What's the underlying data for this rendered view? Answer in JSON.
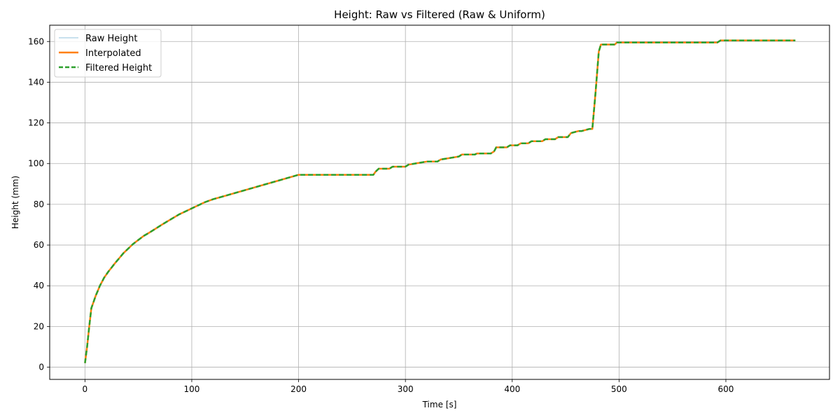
{
  "chart_data": {
    "type": "line",
    "title": "Height: Raw vs Filtered (Raw & Uniform)",
    "xlabel": "Time [s]",
    "ylabel": "Height (mm)",
    "xlim": [
      -33,
      697
    ],
    "ylim": [
      -6,
      168
    ],
    "xticks": [
      0,
      100,
      200,
      300,
      400,
      500,
      600
    ],
    "yticks": [
      0,
      20,
      40,
      60,
      80,
      100,
      120,
      140,
      160
    ],
    "grid": true,
    "legend_position": "top-left",
    "series": [
      {
        "name": "Raw Height",
        "color": "#a6cee3",
        "style": "solid-thin",
        "x": [
          0,
          2,
          4,
          6,
          8,
          10,
          12,
          14,
          16,
          18,
          20,
          22,
          25,
          28,
          32,
          36,
          40,
          45,
          50,
          55,
          60,
          66,
          72,
          80,
          88,
          96,
          104,
          112,
          120,
          130,
          140,
          150,
          160,
          170,
          180,
          190,
          200,
          210,
          220,
          230,
          240,
          250,
          262,
          270,
          272,
          275,
          285,
          288,
          300,
          303,
          320,
          330,
          333,
          350,
          353,
          365,
          367,
          380,
          383,
          385,
          395,
          398,
          405,
          408,
          415,
          418,
          428,
          431,
          440,
          443,
          452,
          455,
          462,
          465,
          472,
          475,
          478,
          481,
          483,
          496,
          498,
          592,
          595,
          665
        ],
        "y": [
          2,
          10,
          20,
          29,
          32,
          35,
          37.5,
          40,
          42,
          44,
          45.5,
          47,
          49,
          51,
          53.5,
          56,
          58,
          60.5,
          62.5,
          64.5,
          66,
          68,
          70,
          72.5,
          75,
          77,
          79,
          81,
          82.5,
          84,
          85.5,
          87,
          88.5,
          90,
          91.5,
          93,
          94.5,
          94.5,
          94.5,
          94.5,
          94.5,
          94.5,
          94.5,
          94.5,
          96,
          97.5,
          97.5,
          98.5,
          98.5,
          99.5,
          101,
          101,
          102,
          103.5,
          104.5,
          104.5,
          105,
          105,
          106,
          108,
          108,
          109,
          109,
          110,
          110,
          111,
          111,
          112,
          112,
          113,
          113,
          115,
          116,
          116,
          117,
          117,
          135,
          155,
          158.5,
          158.5,
          159.5,
          159.5,
          160.5,
          160.5
        ]
      },
      {
        "name": "Interpolated",
        "color": "#ff7f0e",
        "style": "solid-thick",
        "x": [
          0,
          2,
          4,
          6,
          8,
          10,
          12,
          14,
          16,
          18,
          20,
          22,
          25,
          28,
          32,
          36,
          40,
          45,
          50,
          55,
          60,
          66,
          72,
          80,
          88,
          96,
          104,
          112,
          120,
          130,
          140,
          150,
          160,
          170,
          180,
          190,
          200,
          210,
          220,
          230,
          240,
          250,
          262,
          270,
          272,
          275,
          285,
          288,
          300,
          303,
          320,
          330,
          333,
          350,
          353,
          365,
          367,
          380,
          383,
          385,
          395,
          398,
          405,
          408,
          415,
          418,
          428,
          431,
          440,
          443,
          452,
          455,
          462,
          465,
          472,
          475,
          478,
          481,
          483,
          496,
          498,
          592,
          595,
          665
        ],
        "y": [
          2,
          10,
          20,
          29,
          32,
          35,
          37.5,
          40,
          42,
          44,
          45.5,
          47,
          49,
          51,
          53.5,
          56,
          58,
          60.5,
          62.5,
          64.5,
          66,
          68,
          70,
          72.5,
          75,
          77,
          79,
          81,
          82.5,
          84,
          85.5,
          87,
          88.5,
          90,
          91.5,
          93,
          94.5,
          94.5,
          94.5,
          94.5,
          94.5,
          94.5,
          94.5,
          94.5,
          96,
          97.5,
          97.5,
          98.5,
          98.5,
          99.5,
          101,
          101,
          102,
          103.5,
          104.5,
          104.5,
          105,
          105,
          106,
          108,
          108,
          109,
          109,
          110,
          110,
          111,
          111,
          112,
          112,
          113,
          113,
          115,
          116,
          116,
          117,
          117,
          135,
          155,
          158.5,
          158.5,
          159.5,
          159.5,
          160.5,
          160.5
        ]
      },
      {
        "name": "Filtered Height",
        "color": "#2ca02c",
        "style": "dashed",
        "x": [
          0,
          2,
          4,
          6,
          8,
          10,
          12,
          14,
          16,
          18,
          20,
          22,
          25,
          28,
          32,
          36,
          40,
          45,
          50,
          55,
          60,
          66,
          72,
          80,
          88,
          96,
          104,
          112,
          120,
          130,
          140,
          150,
          160,
          170,
          180,
          190,
          200,
          210,
          220,
          230,
          240,
          250,
          262,
          270,
          272,
          275,
          285,
          288,
          300,
          303,
          320,
          330,
          333,
          350,
          353,
          365,
          367,
          380,
          383,
          385,
          395,
          398,
          405,
          408,
          415,
          418,
          428,
          431,
          440,
          443,
          452,
          455,
          462,
          465,
          472,
          475,
          478,
          481,
          483,
          496,
          498,
          592,
          595,
          665
        ],
        "y": [
          2,
          10,
          20,
          29,
          32,
          35,
          37.5,
          40,
          42,
          44,
          45.5,
          47,
          49,
          51,
          53.5,
          56,
          58,
          60.5,
          62.5,
          64.5,
          66,
          68,
          70,
          72.5,
          75,
          77,
          79,
          81,
          82.5,
          84,
          85.5,
          87,
          88.5,
          90,
          91.5,
          93,
          94.5,
          94.5,
          94.5,
          94.5,
          94.5,
          94.5,
          94.5,
          94.5,
          96,
          97.5,
          97.5,
          98.5,
          98.5,
          99.5,
          101,
          101,
          102,
          103.5,
          104.5,
          104.5,
          105,
          105,
          106,
          108,
          108,
          109,
          109,
          110,
          110,
          111,
          111,
          112,
          112,
          113,
          113,
          115,
          116,
          116,
          117,
          117,
          135,
          155,
          158.5,
          158.5,
          159.5,
          159.5,
          160.5,
          160.5
        ]
      }
    ]
  }
}
